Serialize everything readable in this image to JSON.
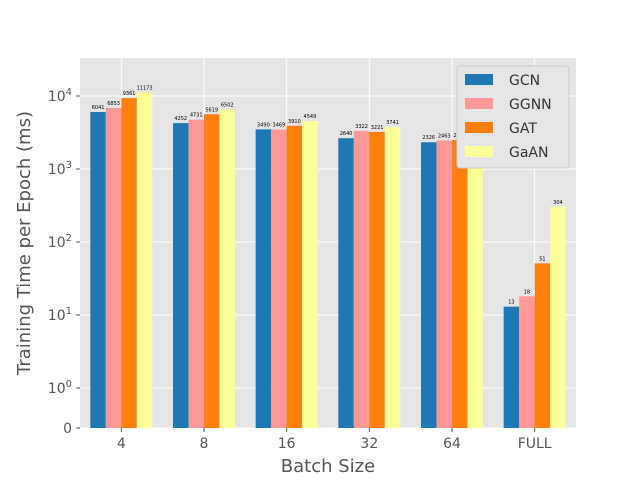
{
  "chart_data": {
    "type": "bar",
    "xlabel": "Batch Size",
    "ylabel": "Training Time per Epoch (ms)",
    "yscale": "symlog",
    "ylim": [
      0,
      20000
    ],
    "grid": true,
    "legend_position": "top-right",
    "categories": [
      "4",
      "8",
      "16",
      "32",
      "64",
      "FULL"
    ],
    "y_ticks": [
      {
        "value": 0,
        "base": "0",
        "exp": ""
      },
      {
        "value": 1,
        "base": "10",
        "exp": "0"
      },
      {
        "value": 10,
        "base": "10",
        "exp": "1"
      },
      {
        "value": 100,
        "base": "10",
        "exp": "2"
      },
      {
        "value": 1000,
        "base": "10",
        "exp": "3"
      },
      {
        "value": 10000,
        "base": "10",
        "exp": "4"
      }
    ],
    "series": [
      {
        "name": "GCN",
        "color": "#1f77b4",
        "values": [
          6041,
          4252,
          3490,
          2640,
          2326,
          13
        ],
        "labels": [
          "6041",
          "4252",
          "3490",
          "2640",
          "2326",
          "13"
        ]
      },
      {
        "name": "GGNN",
        "color": "#ff9896",
        "values": [
          6853,
          4731,
          3469,
          3322,
          2463,
          18
        ],
        "labels": [
          "6853",
          "4731",
          "3469",
          "3322",
          "2463",
          "18"
        ]
      },
      {
        "name": "GAT",
        "color": "#ff7f0e",
        "values": [
          9361,
          5619,
          3910,
          3221,
          2501,
          51
        ],
        "labels": [
          "9361",
          "5619",
          "3910",
          "3221",
          "2501",
          "51"
        ]
      },
      {
        "name": "GaAN",
        "color": "#ffff99",
        "values": [
          11173,
          6502,
          4549,
          3741,
          3052,
          304
        ],
        "labels": [
          "11173",
          "6502",
          "4549",
          "3741",
          "3052",
          "304"
        ]
      }
    ]
  }
}
